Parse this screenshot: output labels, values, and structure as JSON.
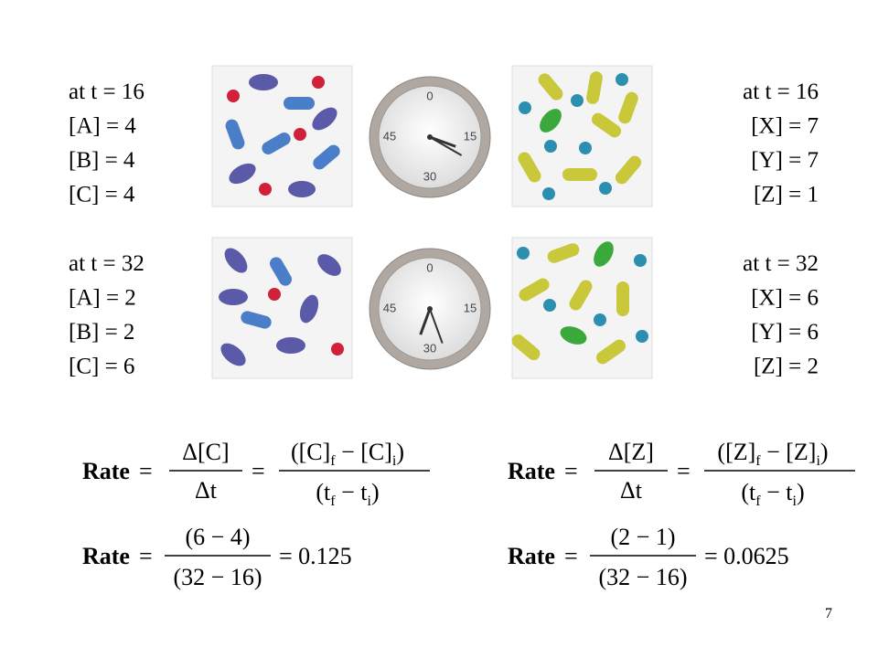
{
  "panels": [
    {
      "left": [
        "at t = 16",
        "[A] = 4",
        "[B] = 4",
        "[C] = 4"
      ],
      "right": [
        "at t = 16",
        "[X] = 7",
        "[Y] = 7",
        "[Z] = 1"
      ]
    },
    {
      "left": [
        "at t = 32",
        "[A] = 2",
        "[B] = 2",
        "[C] = 6"
      ],
      "right": [
        "at t = 32",
        "[X] = 6",
        "[Y] = 6",
        "[Z] = 2"
      ]
    }
  ],
  "clock_labels": [
    "0",
    "15",
    "30",
    "45"
  ],
  "formulas": [
    {
      "rate": "Rate",
      "eq": "=",
      "delta_num": "Δ[C]",
      "delta_den": "Δt",
      "diff_num": [
        "([C]",
        "f",
        " − [C]",
        "i",
        ")"
      ],
      "diff_den": [
        "(t",
        "f",
        " − t",
        "i",
        ")"
      ],
      "calc_num": "(6 − 4)",
      "calc_den": "(32 − 16)",
      "result": "= 0.125"
    },
    {
      "rate": "Rate",
      "eq": "=",
      "delta_num": "Δ[Z]",
      "delta_den": "Δt",
      "diff_num": [
        "([Z]",
        "f",
        " − [Z]",
        "i",
        ")"
      ],
      "diff_den": [
        "(t",
        "f",
        " − t",
        "i",
        ")"
      ],
      "calc_num": "(2 − 1)",
      "calc_den": "(32 − 16)",
      "result": "= 0.0625"
    }
  ],
  "page_number": "7"
}
